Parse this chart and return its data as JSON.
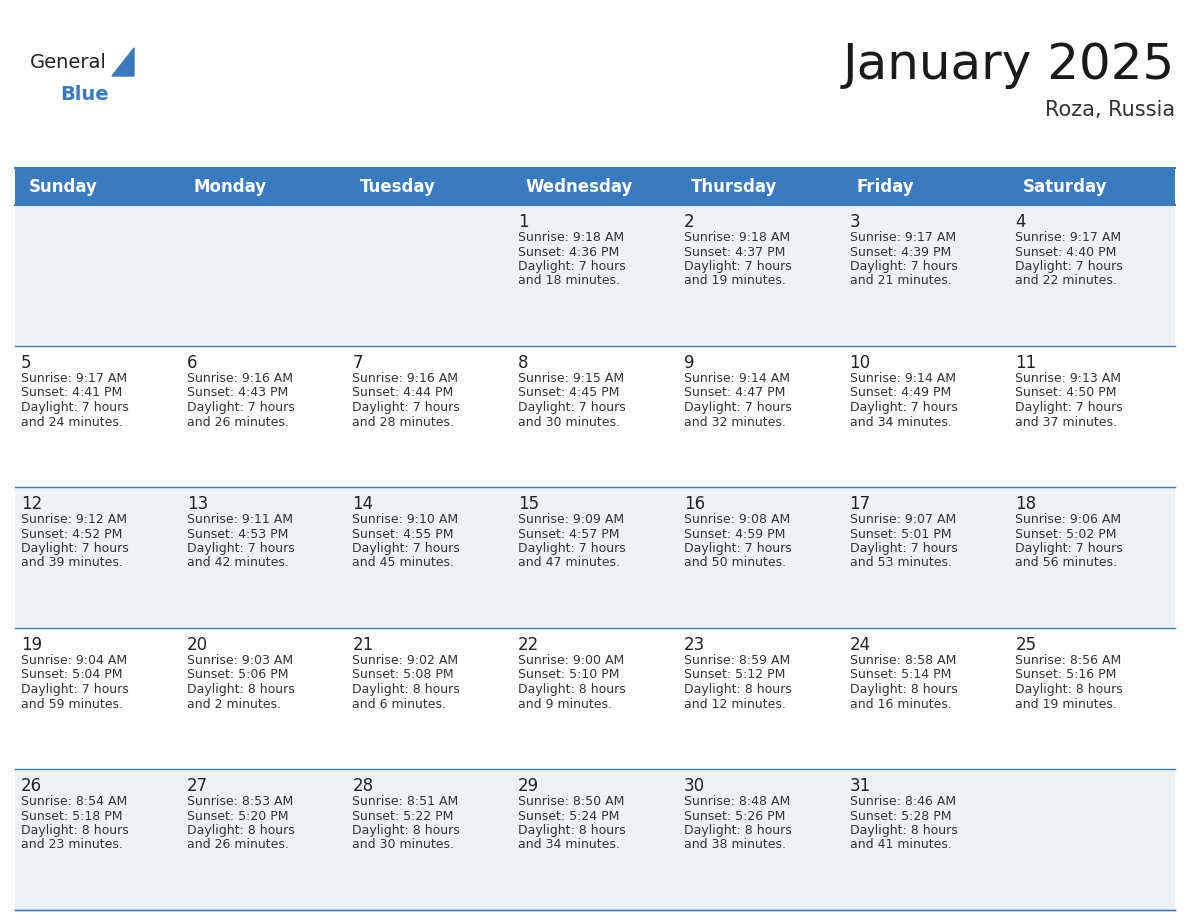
{
  "title": "January 2025",
  "subtitle": "Roza, Russia",
  "header_color": "#3a7abf",
  "header_text_color": "#ffffff",
  "cell_bg_even": "#eef2f7",
  "cell_bg_odd": "#ffffff",
  "border_color": "#3a7abf",
  "day_names": [
    "Sunday",
    "Monday",
    "Tuesday",
    "Wednesday",
    "Thursday",
    "Friday",
    "Saturday"
  ],
  "title_fontsize": 36,
  "subtitle_fontsize": 15,
  "header_fontsize": 12,
  "day_num_fontsize": 12,
  "cell_fontsize": 9,
  "logo_general_color": "#222222",
  "logo_blue_color": "#3a7abf",
  "logo_triangle_color": "#3a7abf",
  "calendar": [
    [
      {
        "day": 0
      },
      {
        "day": 0
      },
      {
        "day": 0
      },
      {
        "day": 1,
        "sunrise": "9:18 AM",
        "sunset": "4:36 PM",
        "daylight": "7 hours",
        "daylight2": "and 18 minutes."
      },
      {
        "day": 2,
        "sunrise": "9:18 AM",
        "sunset": "4:37 PM",
        "daylight": "7 hours",
        "daylight2": "and 19 minutes."
      },
      {
        "day": 3,
        "sunrise": "9:17 AM",
        "sunset": "4:39 PM",
        "daylight": "7 hours",
        "daylight2": "and 21 minutes."
      },
      {
        "day": 4,
        "sunrise": "9:17 AM",
        "sunset": "4:40 PM",
        "daylight": "7 hours",
        "daylight2": "and 22 minutes."
      }
    ],
    [
      {
        "day": 5,
        "sunrise": "9:17 AM",
        "sunset": "4:41 PM",
        "daylight": "7 hours",
        "daylight2": "and 24 minutes."
      },
      {
        "day": 6,
        "sunrise": "9:16 AM",
        "sunset": "4:43 PM",
        "daylight": "7 hours",
        "daylight2": "and 26 minutes."
      },
      {
        "day": 7,
        "sunrise": "9:16 AM",
        "sunset": "4:44 PM",
        "daylight": "7 hours",
        "daylight2": "and 28 minutes."
      },
      {
        "day": 8,
        "sunrise": "9:15 AM",
        "sunset": "4:45 PM",
        "daylight": "7 hours",
        "daylight2": "and 30 minutes."
      },
      {
        "day": 9,
        "sunrise": "9:14 AM",
        "sunset": "4:47 PM",
        "daylight": "7 hours",
        "daylight2": "and 32 minutes."
      },
      {
        "day": 10,
        "sunrise": "9:14 AM",
        "sunset": "4:49 PM",
        "daylight": "7 hours",
        "daylight2": "and 34 minutes."
      },
      {
        "day": 11,
        "sunrise": "9:13 AM",
        "sunset": "4:50 PM",
        "daylight": "7 hours",
        "daylight2": "and 37 minutes."
      }
    ],
    [
      {
        "day": 12,
        "sunrise": "9:12 AM",
        "sunset": "4:52 PM",
        "daylight": "7 hours",
        "daylight2": "and 39 minutes."
      },
      {
        "day": 13,
        "sunrise": "9:11 AM",
        "sunset": "4:53 PM",
        "daylight": "7 hours",
        "daylight2": "and 42 minutes."
      },
      {
        "day": 14,
        "sunrise": "9:10 AM",
        "sunset": "4:55 PM",
        "daylight": "7 hours",
        "daylight2": "and 45 minutes."
      },
      {
        "day": 15,
        "sunrise": "9:09 AM",
        "sunset": "4:57 PM",
        "daylight": "7 hours",
        "daylight2": "and 47 minutes."
      },
      {
        "day": 16,
        "sunrise": "9:08 AM",
        "sunset": "4:59 PM",
        "daylight": "7 hours",
        "daylight2": "and 50 minutes."
      },
      {
        "day": 17,
        "sunrise": "9:07 AM",
        "sunset": "5:01 PM",
        "daylight": "7 hours",
        "daylight2": "and 53 minutes."
      },
      {
        "day": 18,
        "sunrise": "9:06 AM",
        "sunset": "5:02 PM",
        "daylight": "7 hours",
        "daylight2": "and 56 minutes."
      }
    ],
    [
      {
        "day": 19,
        "sunrise": "9:04 AM",
        "sunset": "5:04 PM",
        "daylight": "7 hours",
        "daylight2": "and 59 minutes."
      },
      {
        "day": 20,
        "sunrise": "9:03 AM",
        "sunset": "5:06 PM",
        "daylight": "8 hours",
        "daylight2": "and 2 minutes."
      },
      {
        "day": 21,
        "sunrise": "9:02 AM",
        "sunset": "5:08 PM",
        "daylight": "8 hours",
        "daylight2": "and 6 minutes."
      },
      {
        "day": 22,
        "sunrise": "9:00 AM",
        "sunset": "5:10 PM",
        "daylight": "8 hours",
        "daylight2": "and 9 minutes."
      },
      {
        "day": 23,
        "sunrise": "8:59 AM",
        "sunset": "5:12 PM",
        "daylight": "8 hours",
        "daylight2": "and 12 minutes."
      },
      {
        "day": 24,
        "sunrise": "8:58 AM",
        "sunset": "5:14 PM",
        "daylight": "8 hours",
        "daylight2": "and 16 minutes."
      },
      {
        "day": 25,
        "sunrise": "8:56 AM",
        "sunset": "5:16 PM",
        "daylight": "8 hours",
        "daylight2": "and 19 minutes."
      }
    ],
    [
      {
        "day": 26,
        "sunrise": "8:54 AM",
        "sunset": "5:18 PM",
        "daylight": "8 hours",
        "daylight2": "and 23 minutes."
      },
      {
        "day": 27,
        "sunrise": "8:53 AM",
        "sunset": "5:20 PM",
        "daylight": "8 hours",
        "daylight2": "and 26 minutes."
      },
      {
        "day": 28,
        "sunrise": "8:51 AM",
        "sunset": "5:22 PM",
        "daylight": "8 hours",
        "daylight2": "and 30 minutes."
      },
      {
        "day": 29,
        "sunrise": "8:50 AM",
        "sunset": "5:24 PM",
        "daylight": "8 hours",
        "daylight2": "and 34 minutes."
      },
      {
        "day": 30,
        "sunrise": "8:48 AM",
        "sunset": "5:26 PM",
        "daylight": "8 hours",
        "daylight2": "and 38 minutes."
      },
      {
        "day": 31,
        "sunrise": "8:46 AM",
        "sunset": "5:28 PM",
        "daylight": "8 hours",
        "daylight2": "and 41 minutes."
      },
      {
        "day": 0
      }
    ]
  ]
}
